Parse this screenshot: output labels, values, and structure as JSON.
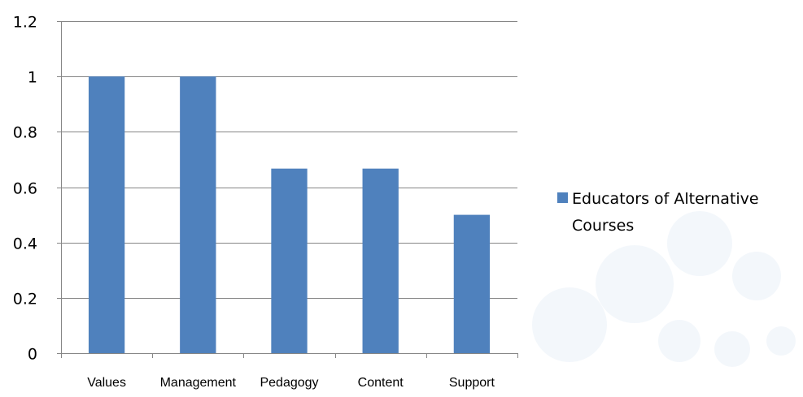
{
  "chart_data": {
    "type": "bar",
    "title": "",
    "xlabel": "",
    "ylabel": "",
    "categories": [
      "Values",
      "Management",
      "Pedagogy",
      "Content",
      "Support"
    ],
    "series": [
      {
        "name": "Educators of Alternative Courses",
        "values": [
          1,
          1,
          0.667,
          0.667,
          0.5
        ],
        "color": "#4f81bd"
      }
    ],
    "ylim": [
      0,
      1.2
    ],
    "yticks": [
      {
        "value": 0,
        "label": "0"
      },
      {
        "value": 0.2,
        "label": "0.2"
      },
      {
        "value": 0.4,
        "label": "0.4"
      },
      {
        "value": 0.6,
        "label": "0.6"
      },
      {
        "value": 0.8,
        "label": "0.8"
      },
      {
        "value": 1,
        "label": "1"
      },
      {
        "value": 1.2,
        "label": "1.2"
      }
    ],
    "grid": true,
    "legend": {
      "position": "right",
      "lines": [
        "Educators of Alternative",
        "Courses"
      ]
    },
    "colors": {
      "bar": "#4f81bd",
      "grid": "#868686",
      "axis": "#868686",
      "text": "#000000"
    }
  }
}
